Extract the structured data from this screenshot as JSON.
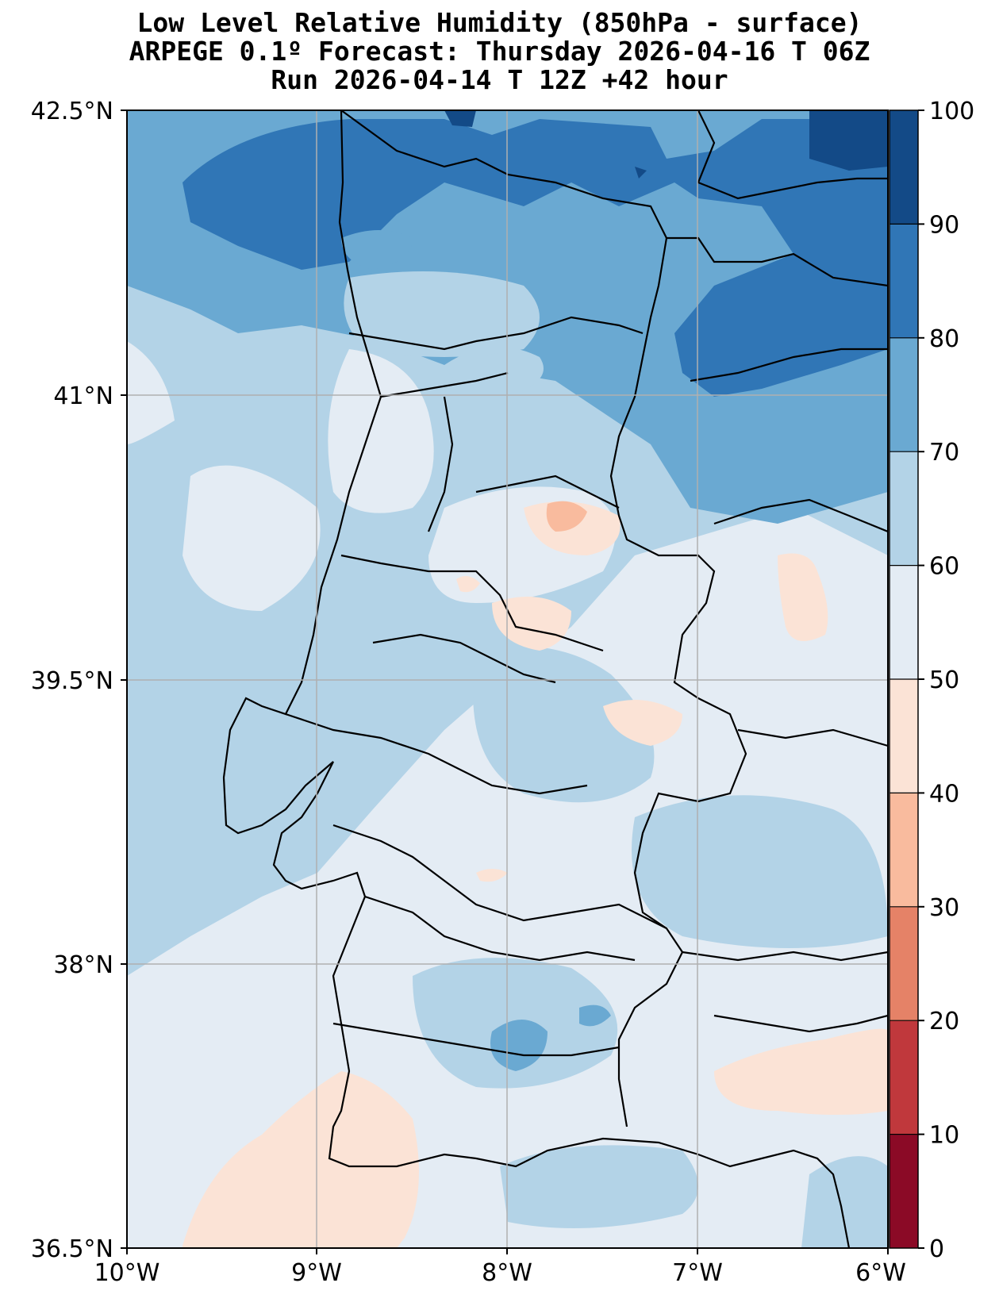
{
  "title": {
    "line1": "Low Level Relative Humidity (850hPa - surface)",
    "line2": "ARPEGE 0.1º Forecast: Thursday 2026-04-16 T 06Z",
    "line3": "Run 2026-04-14 T 12Z +42 hour"
  },
  "map": {
    "lat_ticks": [
      "42.5°N",
      "41°N",
      "39.5°N",
      "38°N",
      "36.5°N"
    ],
    "lon_ticks": [
      "10°W",
      "9°W",
      "8°W",
      "7°W",
      "6°W"
    ],
    "extent": {
      "lon_min": -10,
      "lon_max": -6,
      "lat_min": 36.5,
      "lat_max": 42.5
    }
  },
  "colorbar": {
    "labels": [
      "100",
      "90",
      "80",
      "70",
      "60",
      "50",
      "40",
      "30",
      "20",
      "10",
      "0"
    ],
    "levels": [
      0,
      10,
      20,
      30,
      40,
      50,
      60,
      70,
      80,
      90,
      100
    ],
    "colors": [
      "#8b0a26",
      "#c0383c",
      "#e58267",
      "#f9bb9e",
      "#fbe3d6",
      "#e4ecf4",
      "#b3d3e7",
      "#6aa9d2",
      "#3076b6",
      "#134a87"
    ]
  }
}
